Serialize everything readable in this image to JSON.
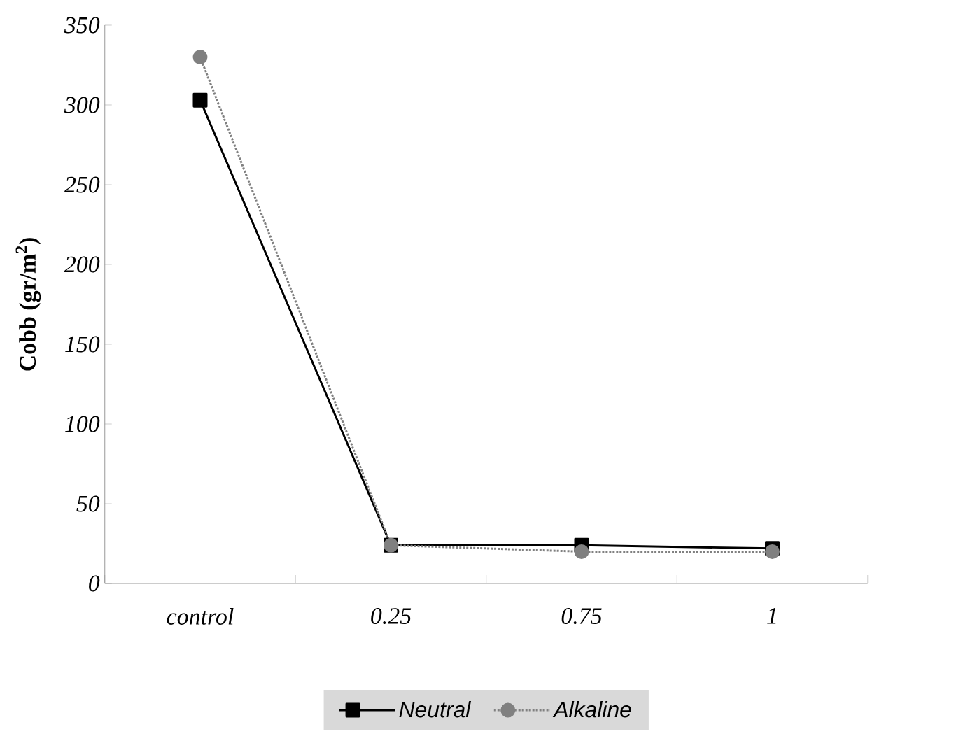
{
  "chart_data": {
    "type": "line",
    "ylabel": "Cobb (gr/m$^{2}$)",
    "categories": [
      "control",
      "0.25",
      "0.75",
      "1"
    ],
    "ylim": [
      0,
      350
    ],
    "yticks": [
      0,
      50,
      100,
      150,
      200,
      250,
      300,
      350
    ],
    "grid": false,
    "legend": "bottom",
    "series": [
      {
        "name": "Neutral",
        "color": "#000000",
        "marker": "square",
        "line_style": "solid",
        "values": [
          303,
          24,
          24,
          22
        ]
      },
      {
        "name": "Alkaline",
        "color": "#808080",
        "marker": "circle",
        "line_style": "dotted",
        "values": [
          330,
          24,
          20,
          20
        ]
      }
    ]
  }
}
